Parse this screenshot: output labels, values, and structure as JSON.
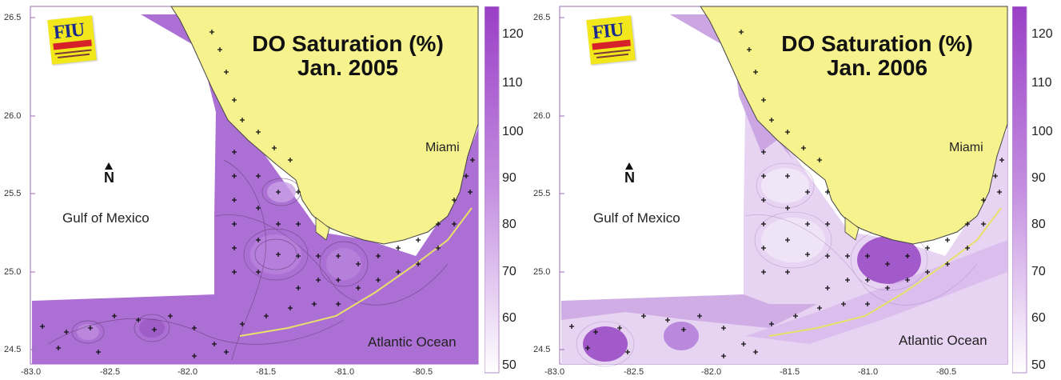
{
  "panels": [
    {
      "title_line1": "DO Saturation (%)",
      "title_line2": "Jan. 2005",
      "gulf_label": "Gulf of Mexico",
      "atlantic_label": "Atlantic Ocean",
      "miami_label": "Miami",
      "north_label": "N",
      "logo_text": "FIU",
      "y_ticks": [
        "26.5",
        "26.0",
        "25.5",
        "25.0",
        "24.5"
      ],
      "x_ticks": [
        "-83.0",
        "-82.5",
        "-82.0",
        "-81.5",
        "-81.0",
        "-80.5"
      ],
      "colorbar_ticks": [
        "120",
        "110",
        "100",
        "90",
        "80",
        "70",
        "60",
        "50"
      ]
    },
    {
      "title_line1": "DO Saturation (%)",
      "title_line2": "Jan. 2006",
      "gulf_label": "Gulf of Mexico",
      "atlantic_label": "Atlantic Ocean",
      "miami_label": "Miami",
      "north_label": "N",
      "logo_text": "FIU",
      "y_ticks": [
        "26.5",
        "26.0",
        "25.5",
        "25.0",
        "24.5"
      ],
      "x_ticks": [
        "-83.0",
        "-82.5",
        "-82.0",
        "-81.5",
        "-81.0",
        "-80.5"
      ],
      "colorbar_ticks": [
        "120",
        "110",
        "100",
        "90",
        "80",
        "70",
        "60",
        "50"
      ]
    }
  ],
  "colors": {
    "land": "#f6f28e",
    "water_2005": "#a868d2",
    "water_2006_light": "#e7d3f2",
    "water_2006_mid": "#c69ee0",
    "water_2006_dark": "#9a4cc7",
    "colorbar_top": "#9a3fc6",
    "colorbar_bottom": "#ffffff"
  }
}
